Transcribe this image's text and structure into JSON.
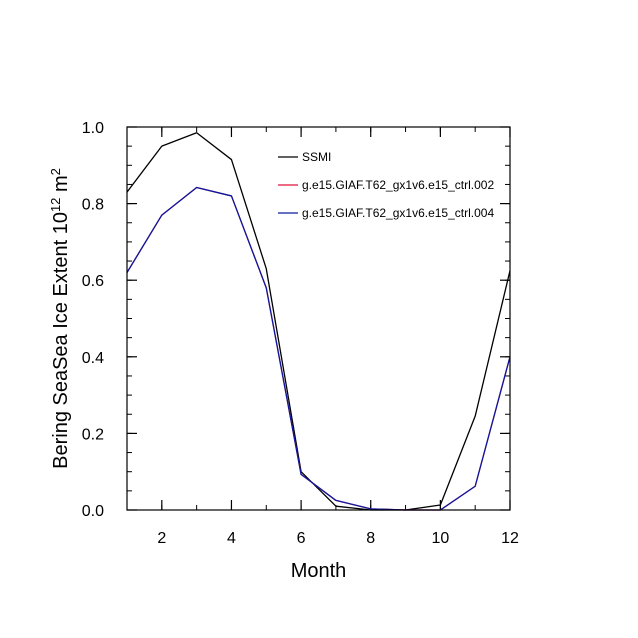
{
  "chart_data": {
    "type": "line",
    "title": "",
    "xlabel": "Month",
    "ylabel": "Bering SeaSea Ice Extent 10",
    "ylabel_exp": "12",
    "ylabel_unit": " m",
    "ylabel_unit_exp": "2",
    "xlim": [
      1,
      12
    ],
    "ylim": [
      0,
      1.0
    ],
    "x_ticks": [
      2,
      4,
      6,
      8,
      10,
      12
    ],
    "x_tick_labels": [
      "2",
      "4",
      "6",
      "8",
      "10",
      "12"
    ],
    "y_ticks": [
      0,
      0.2,
      0.4,
      0.6,
      0.8,
      1.0
    ],
    "y_tick_labels": [
      "0.0",
      "0.2",
      "0.4",
      "0.6",
      "0.8",
      "1.0"
    ],
    "legend_position": "top-right",
    "x": [
      1,
      2,
      3,
      4,
      5,
      6,
      7,
      8,
      9,
      10,
      11,
      12
    ],
    "series": [
      {
        "name": "SSMI",
        "color": "#000000",
        "values": [
          0.83,
          0.95,
          0.985,
          0.915,
          0.63,
          0.1,
          0.01,
          0.0,
          0.0,
          0.013,
          0.245,
          0.625
        ]
      },
      {
        "name": "g.e15.GIAF.T62_gx1v6.e15_ctrl.002",
        "color": "#e0103a",
        "values": [
          0.62,
          0.77,
          0.842,
          0.82,
          0.58,
          0.093,
          0.025,
          0.003,
          0.0,
          0.0,
          0.062,
          0.4
        ]
      },
      {
        "name": "g.e15.GIAF.T62_gx1v6.e15_ctrl.004",
        "color": "#0a1aa0",
        "values": [
          0.62,
          0.77,
          0.842,
          0.82,
          0.58,
          0.093,
          0.025,
          0.003,
          0.0,
          0.0,
          0.062,
          0.4
        ]
      }
    ]
  }
}
